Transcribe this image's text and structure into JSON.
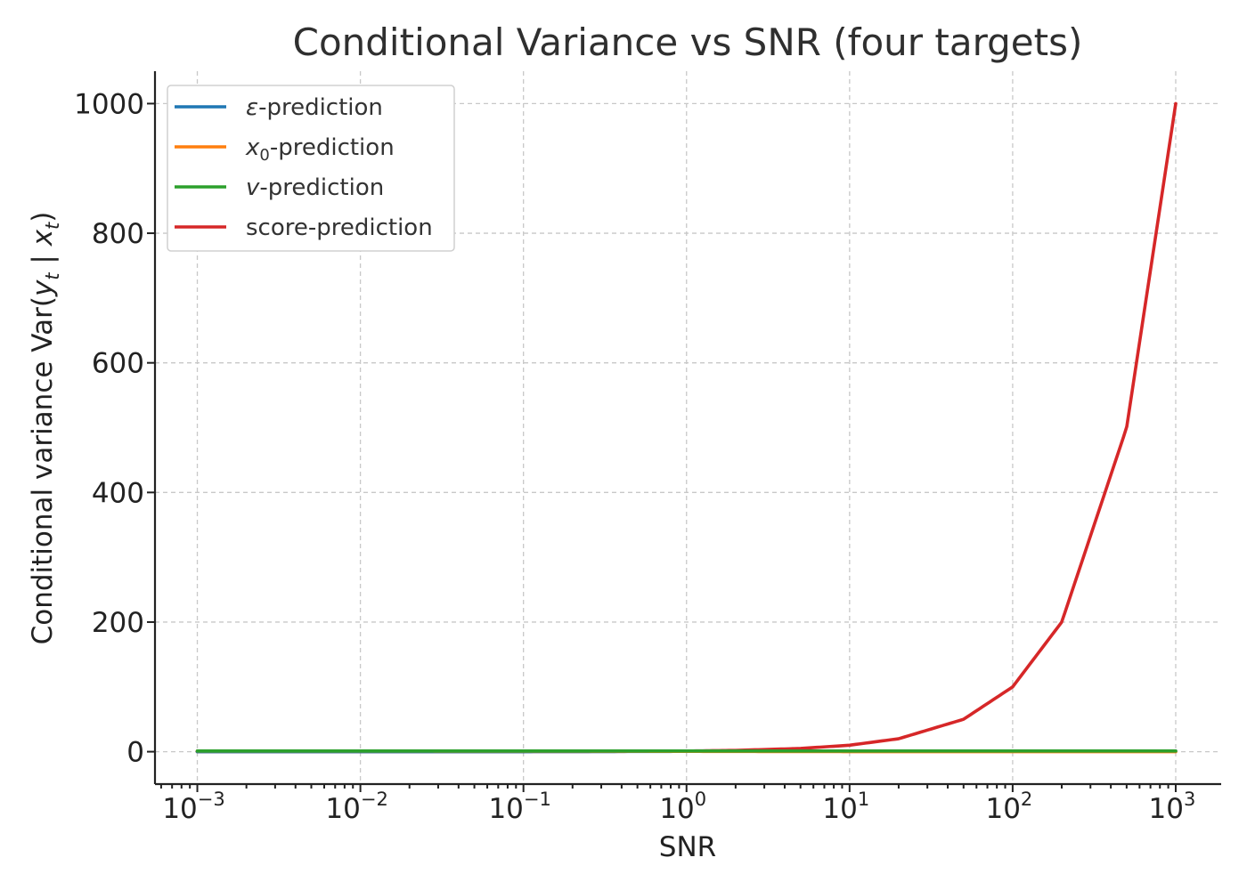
{
  "chart_data": {
    "type": "line",
    "title": "Conditional Variance vs SNR (four targets)",
    "xlabel": "SNR",
    "ylabel": "Conditional variance Var(y_t | x_t)",
    "xscale": "log",
    "xlim": [
      0.00055,
      1900
    ],
    "ylim": [
      -50,
      1050
    ],
    "grid": true,
    "legend_position": "top-left",
    "x_ticks": [
      {
        "value": 0.001,
        "base": "10",
        "exp": "−3"
      },
      {
        "value": 0.01,
        "base": "10",
        "exp": "−2"
      },
      {
        "value": 0.1,
        "base": "10",
        "exp": "−1"
      },
      {
        "value": 1,
        "base": "10",
        "exp": "0"
      },
      {
        "value": 10,
        "base": "10",
        "exp": "1"
      },
      {
        "value": 100,
        "base": "10",
        "exp": "2"
      },
      {
        "value": 1000,
        "base": "10",
        "exp": "3"
      }
    ],
    "y_ticks": [
      0,
      200,
      400,
      600,
      800,
      1000
    ],
    "x": [
      0.001,
      0.002,
      0.005,
      0.01,
      0.02,
      0.05,
      0.1,
      0.2,
      0.5,
      1,
      2,
      5,
      10,
      20,
      50,
      100,
      200,
      500,
      1000
    ],
    "series": [
      {
        "name": "ε-prediction",
        "color": "#1f77b4",
        "values": [
          0.001,
          0.002,
          0.005,
          0.0099,
          0.0196,
          0.0476,
          0.0909,
          0.1667,
          0.3333,
          0.5,
          0.6667,
          0.8333,
          0.9091,
          0.9524,
          0.9804,
          0.9901,
          0.995,
          0.998,
          0.999
        ]
      },
      {
        "name": "x₀-prediction",
        "color": "#ff7f0e",
        "values": [
          0.999,
          0.998,
          0.995,
          0.9901,
          0.9804,
          0.9524,
          0.9091,
          0.8333,
          0.6667,
          0.5,
          0.3333,
          0.1667,
          0.0909,
          0.0476,
          0.0196,
          0.0099,
          0.005,
          0.002,
          0.001
        ]
      },
      {
        "name": "v-prediction",
        "color": "#2ca02c",
        "values": [
          1,
          1,
          1,
          1,
          1,
          1,
          1,
          1,
          1,
          1,
          1,
          1,
          1,
          1,
          1,
          1,
          1,
          1,
          1
        ]
      },
      {
        "name": "score-prediction",
        "color": "#d62728",
        "values": [
          0.001,
          0.002,
          0.005,
          0.01,
          0.02,
          0.05,
          0.1,
          0.2,
          0.5,
          1,
          2,
          5,
          10,
          20,
          50,
          100,
          200,
          500,
          1000
        ]
      }
    ]
  }
}
